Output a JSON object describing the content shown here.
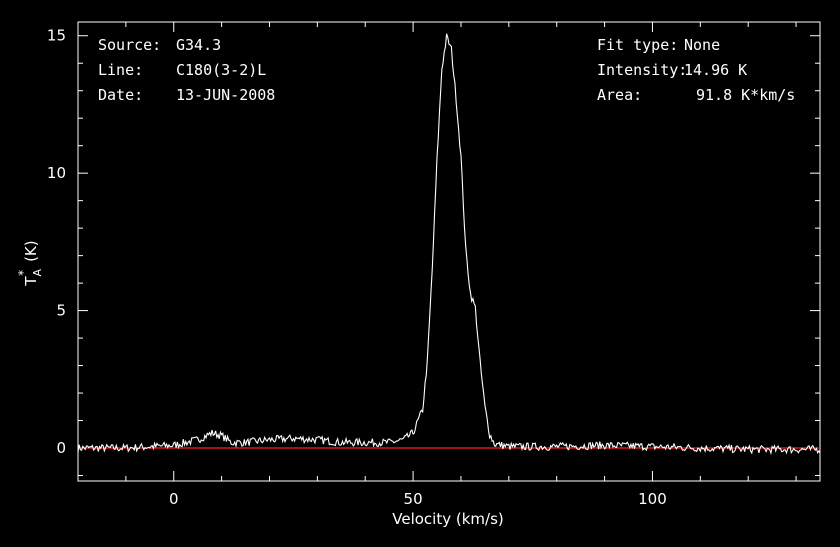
{
  "annotations": {
    "source_label": "Source:",
    "source_value": "G34.3",
    "line_label": "Line:",
    "line_value": "C180(3-2)L",
    "date_label": "Date:",
    "date_value": "13-JUN-2008",
    "fit_label": "Fit type:",
    "fit_value": "None",
    "intensity_label": "Intensity:",
    "intensity_value": "14.96 K",
    "area_label": "Area:",
    "area_value": "91.8 K*km/s"
  },
  "chart_data": {
    "type": "line",
    "title": "",
    "xlabel": "Velocity (km/s)",
    "ylabel": "T*A (K)",
    "ylabel_main": "T",
    "ylabel_sup": "*",
    "ylabel_sub": "A",
    "ylabel_unit": "(K)",
    "xlim": [
      -20,
      135
    ],
    "ylim": [
      -1.2,
      15.5
    ],
    "xticks": [
      0,
      50,
      100
    ],
    "yticks": [
      0,
      5,
      10,
      15
    ],
    "xtick_labels": [
      "0",
      "50",
      "100"
    ],
    "ytick_labels": [
      "0",
      "5",
      "10",
      "15"
    ],
    "grid": false,
    "colors": {
      "spectrum": "#ffffff",
      "baseline": "#ff2020",
      "axes": "#ffffff",
      "background": "#000000"
    },
    "series": [
      {
        "x": [
          -20,
          -10,
          0,
          5,
          8,
          10,
          12,
          15,
          20,
          25,
          30,
          35,
          40,
          45,
          48,
          50,
          52,
          53,
          54,
          55,
          56,
          57,
          58,
          59,
          60,
          61,
          62,
          63,
          64,
          65,
          66,
          67,
          70,
          80,
          90,
          100,
          110,
          120,
          130,
          135
        ],
        "values": [
          0.0,
          0.0,
          0.1,
          0.3,
          0.55,
          0.45,
          0.2,
          0.2,
          0.3,
          0.35,
          0.3,
          0.2,
          0.2,
          0.2,
          0.3,
          0.55,
          1.4,
          3.2,
          6.5,
          10.5,
          13.8,
          14.96,
          14.5,
          12.7,
          10.6,
          7.2,
          5.6,
          5.1,
          3.1,
          1.5,
          0.5,
          0.15,
          0.05,
          0.05,
          0.1,
          0.05,
          0.0,
          -0.05,
          -0.05,
          -0.05
        ]
      },
      {
        "x": [
          -20,
          135
        ],
        "values": [
          0,
          0
        ]
      }
    ]
  }
}
